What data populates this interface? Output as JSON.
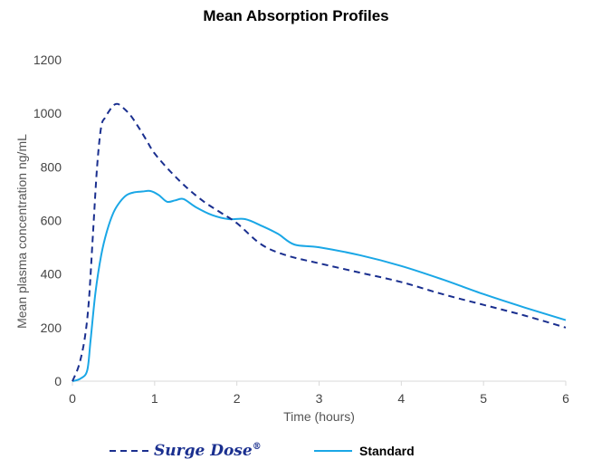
{
  "chart_data": {
    "type": "line",
    "title": "Mean Absorption Profiles",
    "xlabel": "Time (hours)",
    "ylabel": "Mean plasma concentration ng/mL",
    "xlim": [
      0,
      6
    ],
    "ylim": [
      0,
      1200
    ],
    "x_ticks": [
      "0",
      "1",
      "2",
      "3",
      "4",
      "5",
      "6"
    ],
    "y_ticks": [
      "0",
      "200",
      "400",
      "600",
      "800",
      "1000",
      "1200"
    ],
    "grid": false,
    "legend_position": "bottom",
    "series": [
      {
        "name": "Surge Dose",
        "name_mark": "®",
        "style": "dashed",
        "color": "#1a2f8f",
        "x": [
          0,
          0.08,
          0.15,
          0.2,
          0.25,
          0.3,
          0.35,
          0.4,
          0.45,
          0.5,
          0.55,
          0.6,
          0.7,
          0.8,
          0.9,
          1.0,
          1.2,
          1.4,
          1.6,
          1.8,
          2.0,
          2.3,
          2.6,
          3.0,
          3.5,
          4.0,
          4.5,
          5.0,
          5.5,
          6.0
        ],
        "y": [
          0,
          60,
          160,
          300,
          550,
          800,
          950,
          985,
          1010,
          1030,
          1035,
          1025,
          995,
          950,
          900,
          850,
          780,
          720,
          670,
          630,
          590,
          510,
          470,
          440,
          405,
          370,
          325,
          285,
          245,
          200
        ]
      },
      {
        "name": "Standard",
        "style": "solid",
        "color": "#1aa7e6",
        "x": [
          0,
          0.1,
          0.18,
          0.22,
          0.28,
          0.35,
          0.42,
          0.5,
          0.58,
          0.66,
          0.75,
          0.85,
          0.95,
          1.05,
          1.15,
          1.25,
          1.35,
          1.5,
          1.7,
          1.9,
          2.1,
          2.3,
          2.5,
          2.7,
          3.0,
          3.5,
          4.0,
          4.5,
          5.0,
          5.5,
          6.0
        ],
        "y": [
          0,
          10,
          40,
          150,
          330,
          470,
          560,
          630,
          670,
          695,
          705,
          708,
          710,
          695,
          670,
          675,
          680,
          650,
          620,
          605,
          605,
          580,
          550,
          510,
          500,
          470,
          430,
          380,
          325,
          275,
          228
        ]
      }
    ]
  }
}
